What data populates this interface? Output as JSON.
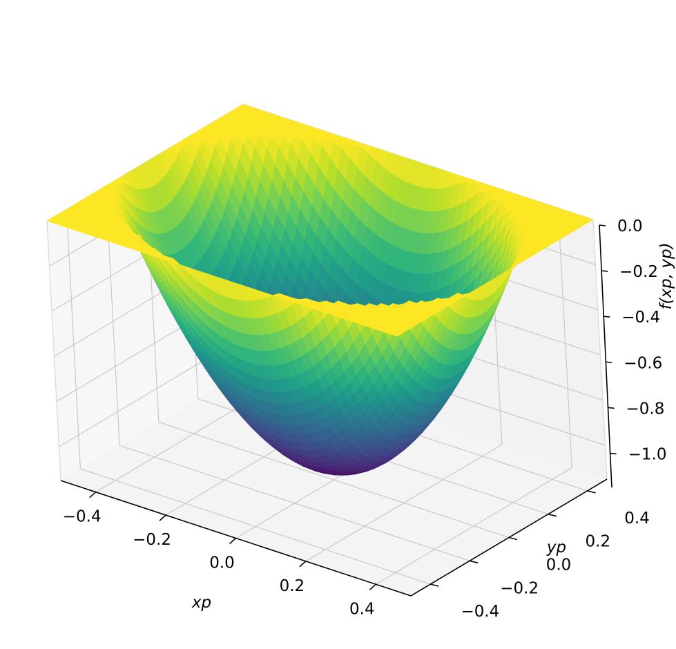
{
  "chart_data": {
    "type": "surface",
    "function": "f(xp, yp) = xp^2 + yp^2 - 0.25 inside circle of radius 0.5, 0 outside (scaled)",
    "x": {
      "label": "xp",
      "range": [
        -0.5,
        0.5
      ],
      "ticks": [
        -0.4,
        -0.2,
        0.0,
        0.2,
        0.4
      ],
      "tick_labels": [
        "−0.4",
        "−0.2",
        "0.0",
        "0.2",
        "0.4"
      ]
    },
    "y": {
      "label": "yp",
      "range": [
        -0.5,
        0.5
      ],
      "ticks": [
        -0.4,
        -0.2,
        0.0,
        0.2,
        0.4
      ],
      "tick_labels": [
        "−0.4",
        "−0.2",
        "0.0",
        "0.2",
        "0.4"
      ]
    },
    "z": {
      "label": "f(xp, yp)",
      "range": [
        -1.15,
        0.0
      ],
      "ticks": [
        0.0,
        -0.2,
        -0.4,
        -0.6,
        -0.8,
        -1.0
      ],
      "tick_labels": [
        "0.0",
        "−0.2",
        "−0.4",
        "−0.6",
        "−0.8",
        "−1.0"
      ]
    },
    "surface_min": -1.1,
    "flat_value_outside": 0.0,
    "bowl_radius": 0.5,
    "colormap": "viridis",
    "grid": true,
    "pane_color": "#f2f2f2",
    "grid_color": "#c8c8c8"
  }
}
